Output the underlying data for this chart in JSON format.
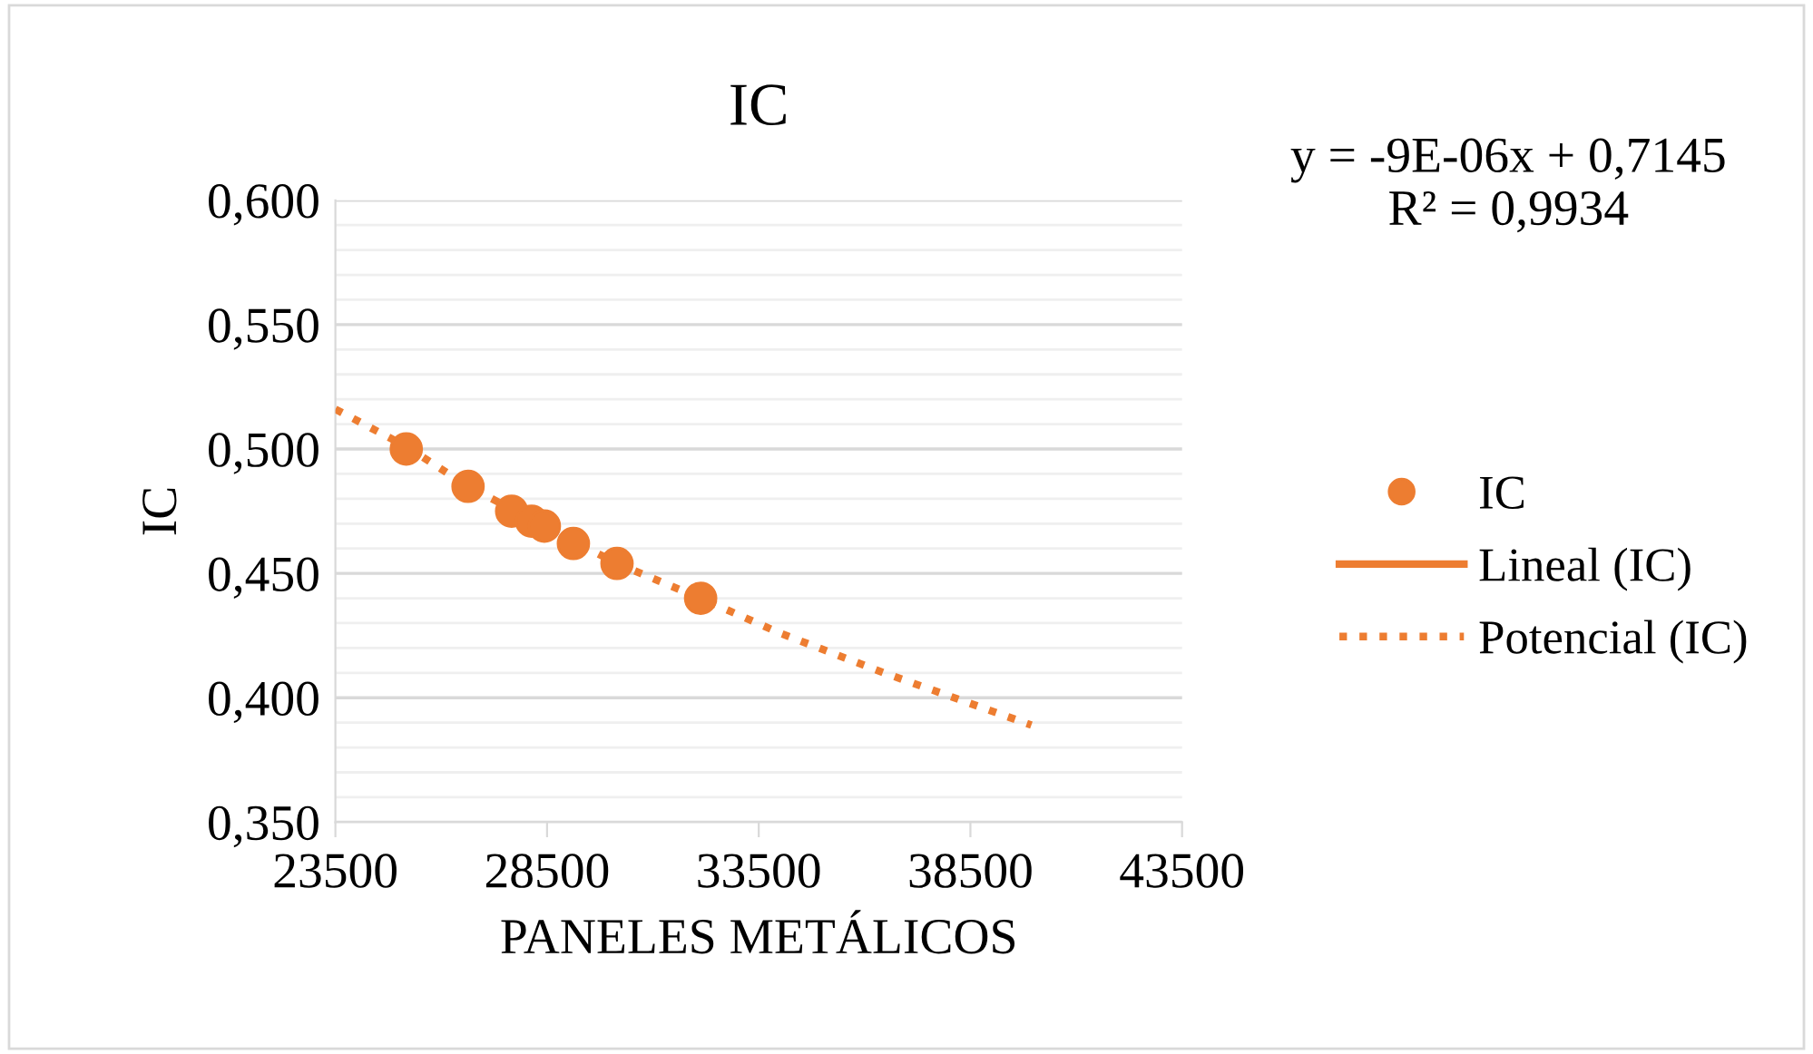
{
  "chart_data": {
    "type": "scatter",
    "title": "IC",
    "xlabel": "PANELES METÁLICOS",
    "ylabel": "IC",
    "annotations": [
      "y = -9E-06x + 0,7145\nR² = 0,9934"
    ],
    "x": [
      25174,
      26633,
      27663,
      28135,
      28436,
      29122,
      30152,
      32127
    ],
    "series": [
      {
        "name": "IC",
        "color": "#ed7d31",
        "marker": "circle",
        "values": [
          0.5,
          0.485,
          0.475,
          0.471,
          0.469,
          0.462,
          0.454,
          0.44
        ]
      },
      {
        "name": "Lineal (IC)",
        "type": "line",
        "color": "#ed7d31",
        "values": [
          null,
          null,
          null,
          null,
          null,
          null,
          null,
          null
        ]
      },
      {
        "name": "Potencial (IC)",
        "type": "line",
        "color": "#ed7d31",
        "line_style": "dotted",
        "x": [
          23500,
          25174,
          26633,
          28436,
          30152,
          32127,
          34000,
          36461,
          39940
        ],
        "values": [
          0.516,
          0.501,
          0.485,
          0.469,
          0.454,
          0.44,
          0.426,
          0.41,
          0.389
        ]
      }
    ],
    "xlim": [
      23500,
      43500
    ],
    "xticks": [
      23500,
      28500,
      33500,
      38500,
      43500
    ],
    "ylim": [
      0.35,
      0.6
    ],
    "yticks": [
      {
        "value": 0.35,
        "label": "0,350"
      },
      {
        "value": 0.36,
        "label": null
      },
      {
        "value": 0.37,
        "label": null
      },
      {
        "value": 0.38,
        "label": null
      },
      {
        "value": 0.39,
        "label": null
      },
      {
        "value": 0.4,
        "label": "0,400"
      },
      {
        "value": 0.41,
        "label": null
      },
      {
        "value": 0.42,
        "label": null
      },
      {
        "value": 0.43,
        "label": null
      },
      {
        "value": 0.44,
        "label": null
      },
      {
        "value": 0.45,
        "label": "0,450"
      },
      {
        "value": 0.46,
        "label": null
      },
      {
        "value": 0.47,
        "label": null
      },
      {
        "value": 0.48,
        "label": null
      },
      {
        "value": 0.49,
        "label": null
      },
      {
        "value": 0.5,
        "label": "0,500"
      },
      {
        "value": 0.51,
        "label": null
      },
      {
        "value": 0.52,
        "label": null
      },
      {
        "value": 0.53,
        "label": null
      },
      {
        "value": 0.54,
        "label": null
      },
      {
        "value": 0.55,
        "label": "0,550"
      },
      {
        "value": 0.56,
        "label": null
      },
      {
        "value": 0.57,
        "label": null
      },
      {
        "value": 0.58,
        "label": null
      },
      {
        "value": 0.59,
        "label": null
      },
      {
        "value": 0.6,
        "label": "0,600"
      }
    ],
    "grid": "y",
    "legend": "right"
  }
}
